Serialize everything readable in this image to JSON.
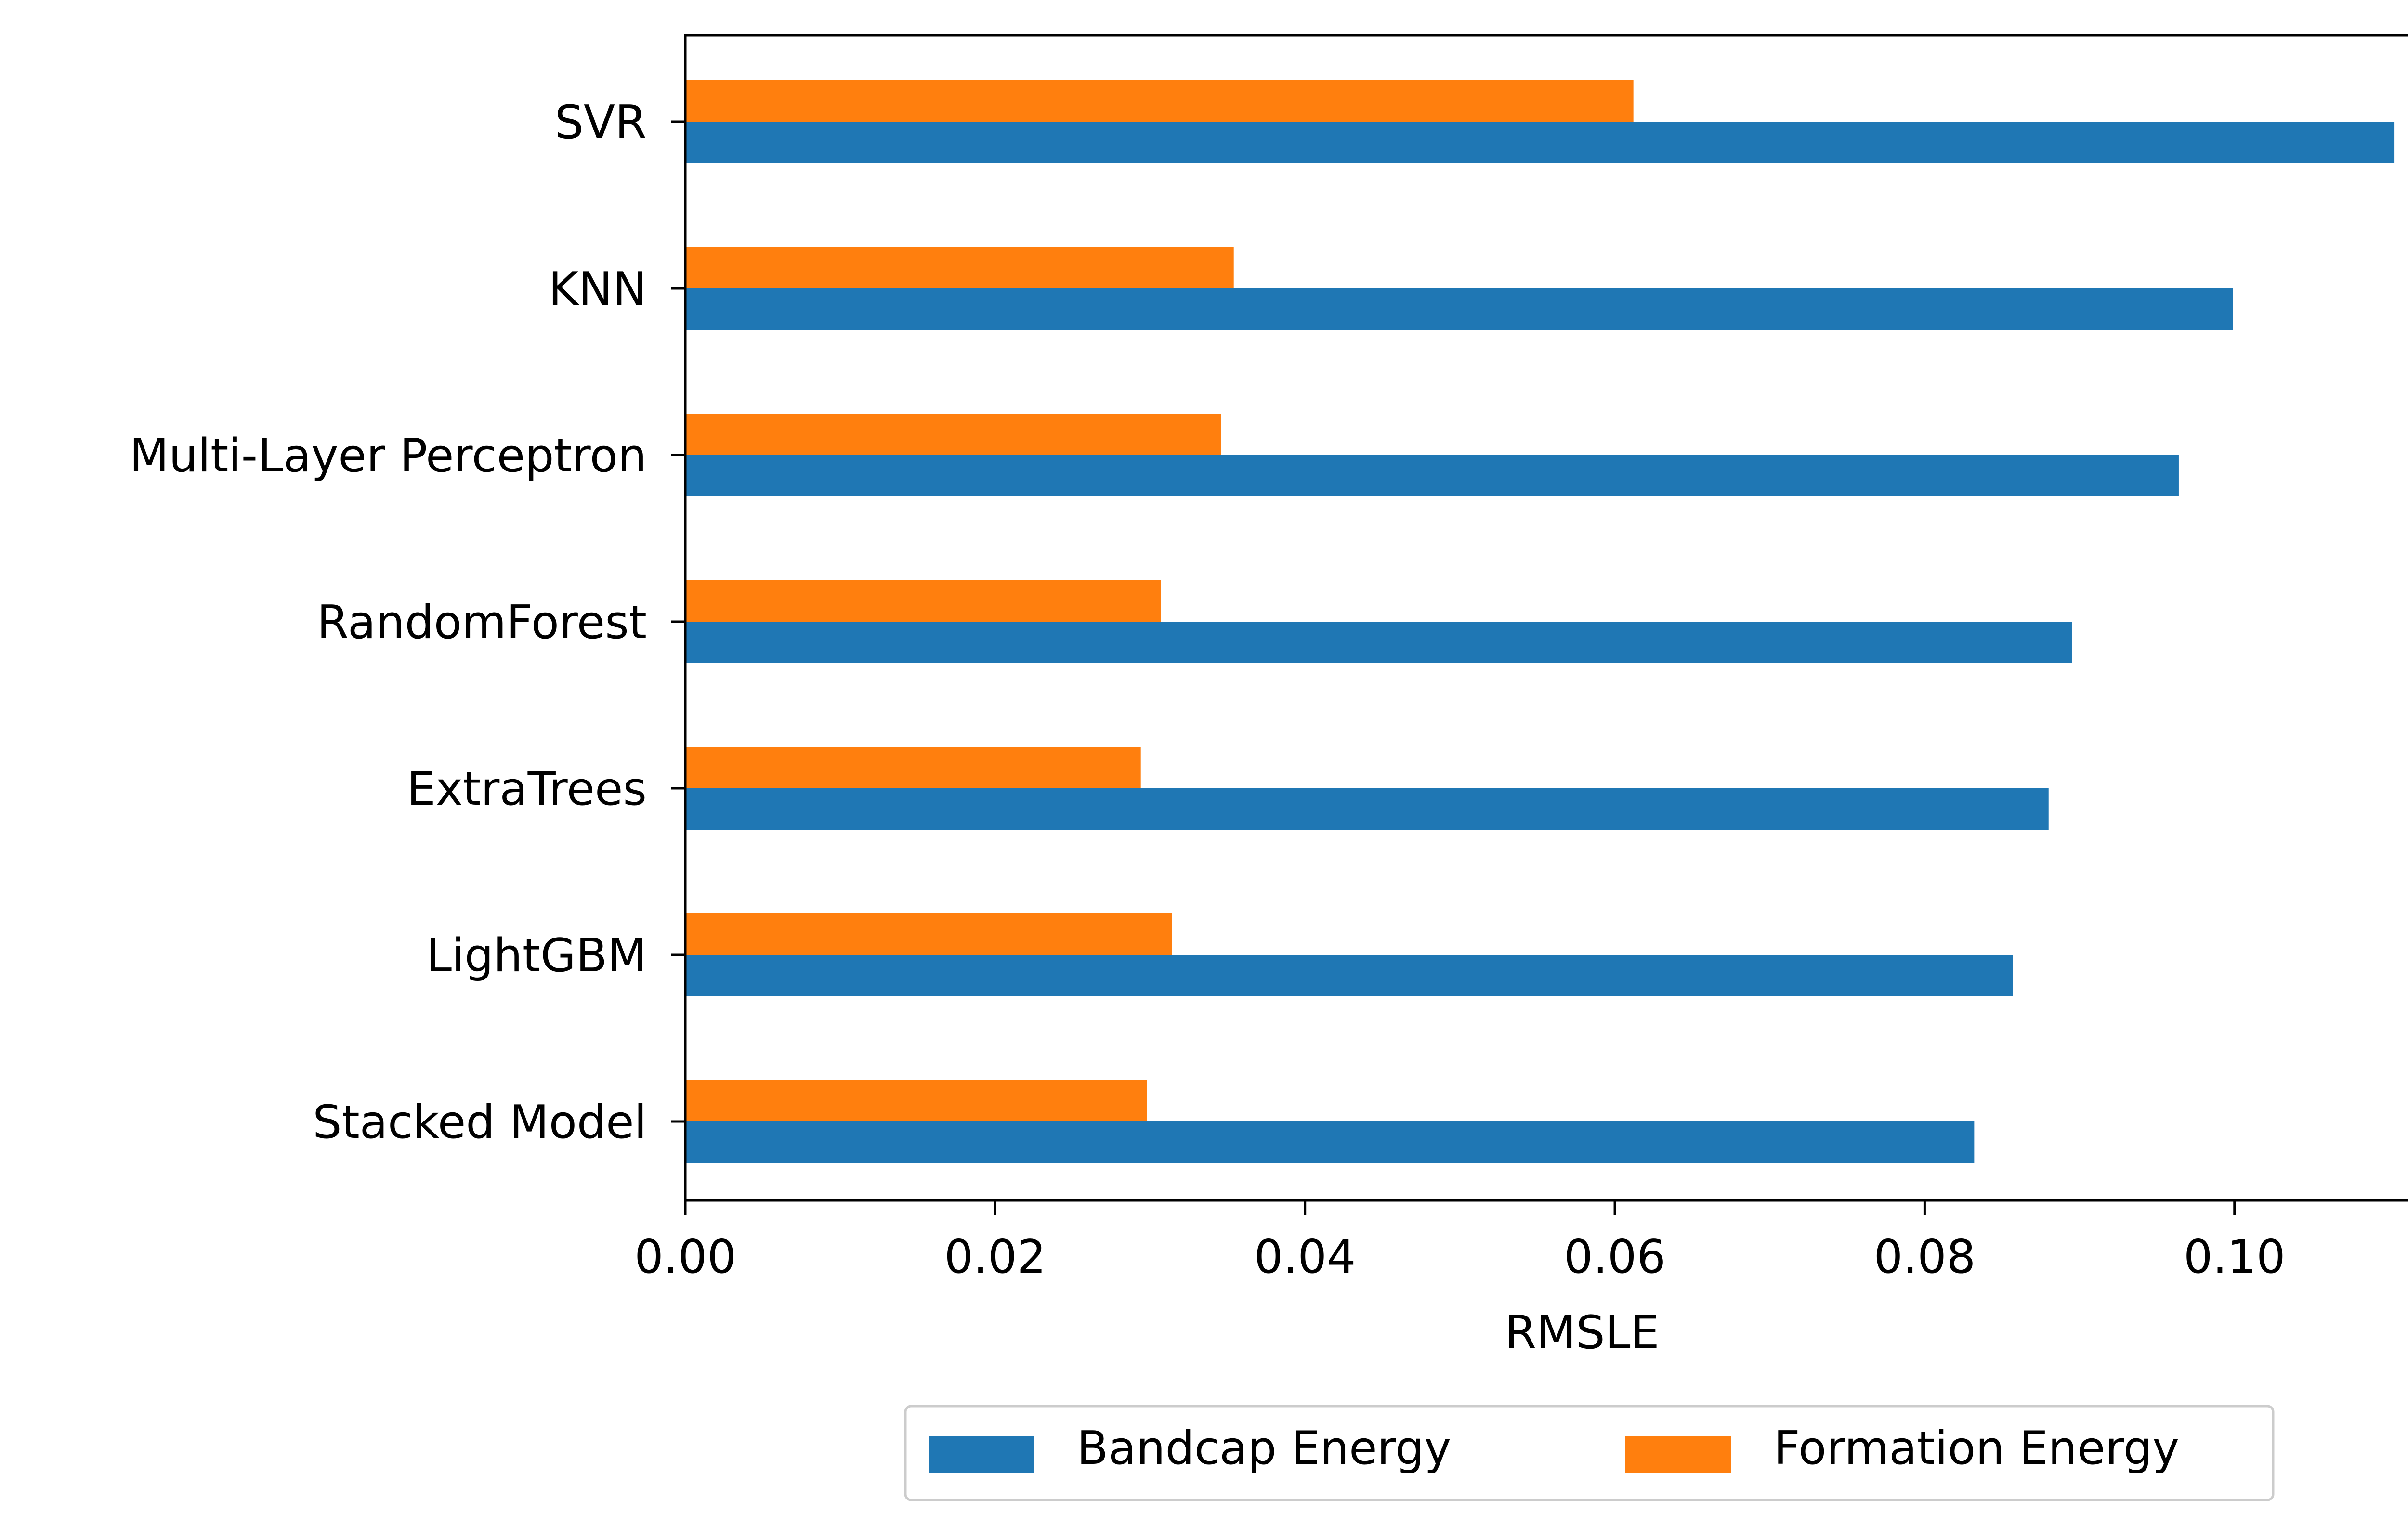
{
  "chart_data": {
    "type": "bar",
    "orientation": "horizontal",
    "title": "",
    "xlabel": "RMSLE",
    "ylabel": "",
    "xlim": [
      0,
      0.1158
    ],
    "xticks": [
      "0.00",
      "0.02",
      "0.04",
      "0.06",
      "0.08",
      "0.10"
    ],
    "xtick_values": [
      0,
      0.02,
      0.04,
      0.06,
      0.08,
      0.1
    ],
    "categories": [
      "SVR",
      "KNN",
      "Multi-Layer Perceptron",
      "RandomForest",
      "ExtraTrees",
      "LightGBM",
      "Stacked Model"
    ],
    "series": [
      {
        "name": "Bandcap Energy",
        "color": "#1f77b4",
        "values": [
          0.1103,
          0.0999,
          0.0964,
          0.0895,
          0.088,
          0.0857,
          0.0832
        ]
      },
      {
        "name": "Formation Energy",
        "color": "#ff7f0e",
        "values": [
          0.0612,
          0.0354,
          0.0346,
          0.0307,
          0.0294,
          0.0314,
          0.0298
        ]
      }
    ],
    "legend": {
      "position": "bottom-center",
      "columns": 2
    },
    "grid": false
  }
}
